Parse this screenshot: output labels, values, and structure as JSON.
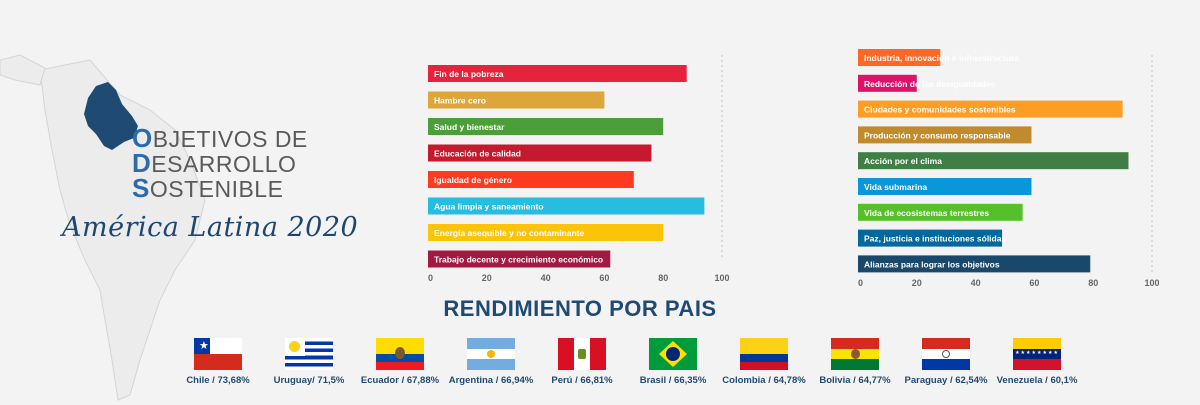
{
  "title": {
    "line1_initial": "O",
    "line1_rest": "BJETIVOS DE",
    "line2_initial": "D",
    "line2_rest": "ESARROLLO",
    "line3_initial": "S",
    "line3_rest": "OSTENIBLE",
    "subtitle": "América Latina 2020"
  },
  "section_title": "RENDIMIENTO POR PAIS",
  "chart_data": [
    {
      "type": "bar",
      "orientation": "horizontal",
      "categories": [
        "Fin de la pobreza",
        "Hambre cero",
        "Salud y bienestar",
        "Educación de calidad",
        "Igualdad de género",
        "Agua limpia y saneamiento",
        "Energía asequible y no contaminante",
        "Trabajo decente y crecimiento económico"
      ],
      "values": [
        88,
        60,
        80,
        76,
        70,
        94,
        80,
        62
      ],
      "colors": [
        "#e5243b",
        "#dda63a",
        "#4c9f38",
        "#c5192d",
        "#ff3a21",
        "#26bde2",
        "#fcc30b",
        "#a21942"
      ],
      "xlim": [
        0,
        100
      ],
      "xticks": [
        "0",
        "20",
        "40",
        "60",
        "80",
        "100"
      ]
    },
    {
      "type": "bar",
      "orientation": "horizontal",
      "categories": [
        "Industria, innovación e infraestructura",
        "Reducción de las desigualdades",
        "Ciudades y comunidades sostenibles",
        "Producción y consumo responsable",
        "Acción por el clima",
        "Vida submarina",
        "Vida de ecosistemas terrestres",
        "Paz, justicia e instituciones sólidas",
        "Alianzas para lograr los objetivos"
      ],
      "values": [
        28,
        20,
        90,
        59,
        92,
        59,
        56,
        49,
        79
      ],
      "colors": [
        "#fd6925",
        "#dd1367",
        "#fd9d24",
        "#bf8b2e",
        "#3f7e44",
        "#0a97d9",
        "#56c02b",
        "#00689d",
        "#19486a"
      ],
      "xlim": [
        0,
        100
      ],
      "xticks": [
        "0",
        "20",
        "40",
        "60",
        "80",
        "100"
      ]
    }
  ],
  "countries": [
    {
      "label": "Chile / 73,68%",
      "flag": "chile"
    },
    {
      "label": "Uruguay/ 71,5%",
      "flag": "uruguay"
    },
    {
      "label": "Ecuador / 67,88%",
      "flag": "ecuador"
    },
    {
      "label": "Argentina / 66,94%",
      "flag": "argentina"
    },
    {
      "label": "Perú / 66,81%",
      "flag": "peru"
    },
    {
      "label": "Brasil / 66,35%",
      "flag": "brasil"
    },
    {
      "label": "Colombia / 64,78%",
      "flag": "colombia"
    },
    {
      "label": "Bolivia / 64,77%",
      "flag": "bolivia"
    },
    {
      "label": "Paraguay / 62,54%",
      "flag": "paraguay"
    },
    {
      "label": "Venezuela / 60,1%",
      "flag": "venezuela"
    }
  ]
}
